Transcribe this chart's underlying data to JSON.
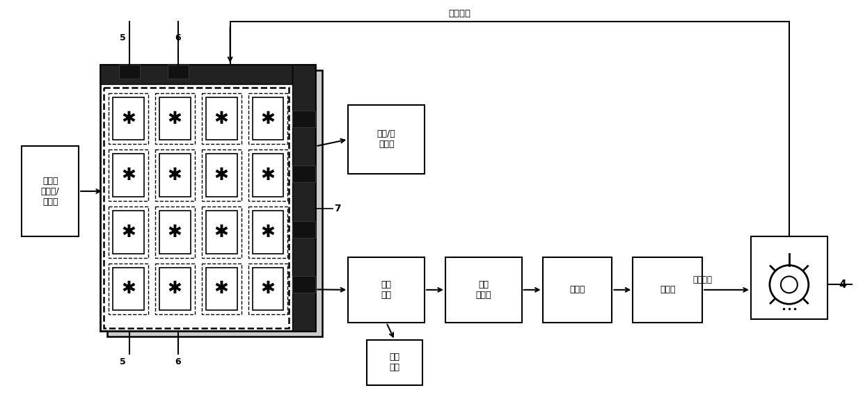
{
  "bg_color": "#ffffff",
  "fig_width": 12.4,
  "fig_height": 5.71,
  "dpi": 100,
  "label_zifei": "自身供电",
  "label_wuxian": "无线电\n发射塔/\n太阳能",
  "label_dingxiang": "定向/全\n向反射",
  "label_xishou": "吸收\n能量",
  "label_nengliang": "能量\n转换器",
  "label_diandeng": "蓄电池",
  "label_biandianqi": "逆变器",
  "label_richang": "日常用电",
  "label_xinhaopingbi": "信号\n屏蔽",
  "label_7": "7",
  "label_5a": "5",
  "label_6a": "6",
  "label_5b": "5",
  "label_6b": "6",
  "label_4": "4"
}
